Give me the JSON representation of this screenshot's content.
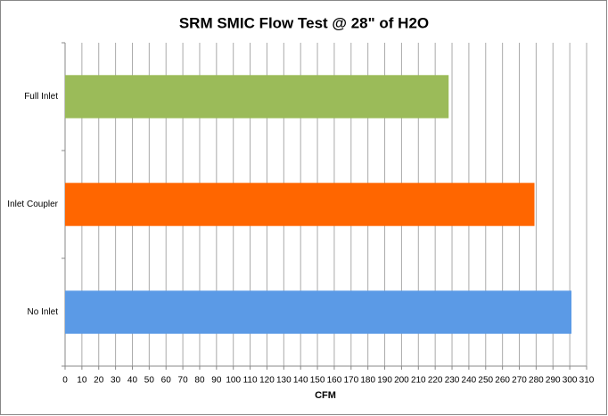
{
  "chart_data": {
    "type": "hbar",
    "title": "SRM SMIC Flow Test @ 28\" of H2O",
    "x_label": "CFM",
    "categories": [
      "Full Inlet",
      "Inlet Coupler",
      "No Inlet"
    ],
    "values": [
      228,
      279,
      301
    ],
    "colors": [
      "#9bbb59",
      "#ff6600",
      "#5b9ae6"
    ],
    "xlim": [
      0,
      310
    ],
    "xticks": [
      0,
      10,
      20,
      30,
      40,
      50,
      60,
      70,
      80,
      90,
      100,
      110,
      120,
      130,
      140,
      150,
      160,
      170,
      180,
      190,
      200,
      210,
      220,
      230,
      240,
      250,
      260,
      270,
      280,
      290,
      300,
      310
    ],
    "grid": true
  }
}
